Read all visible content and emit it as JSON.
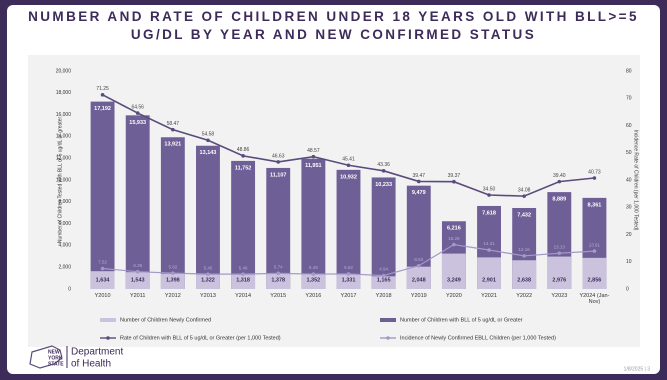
{
  "chart_data": {
    "type": "combo",
    "title": "NUMBER AND RATE OF CHILDREN UNDER 18 YEARS OLD WITH BLL>=5 UG/DL BY YEAR AND NEW CONFIRMED STATUS",
    "y_label": "Number of Children Tested with BLL of 5 ug/dL or greater",
    "y2_label": "Incidence Rate of Children (per 1,000 Tested)",
    "categories": [
      "Y2010",
      "Y2011",
      "Y2012",
      "Y2013",
      "Y2014",
      "Y2015",
      "Y2016",
      "Y2017",
      "Y2018",
      "Y2019",
      "Y2020",
      "Y2021",
      "Y2022",
      "Y2023",
      "Y2024 (Jan-Nov)"
    ],
    "ylim": [
      0,
      20000
    ],
    "yticks": [
      0,
      {
        "value": 2000,
        "label": "2,000"
      },
      {
        "value": 4000,
        "label": "4,000"
      },
      {
        "value": 6000,
        "label": "6,000"
      },
      {
        "value": 8000,
        "label": "8,000"
      },
      {
        "value": 10000,
        "label": "10,000"
      },
      {
        "value": 12000,
        "label": "12,000"
      },
      {
        "value": 14000,
        "label": "14,000"
      },
      {
        "value": 16000,
        "label": "16,000"
      },
      {
        "value": 18000,
        "label": "18,000"
      },
      {
        "value": 20000,
        "label": "20,000"
      }
    ],
    "y2lim": [
      0,
      80
    ],
    "y2ticks": [
      0,
      10,
      20,
      30,
      40,
      50,
      60,
      70,
      80
    ],
    "series": [
      {
        "name": "Number of Children with BLL of 5 ug/dL or Greater",
        "type": "bar",
        "color": "#6e5f96",
        "values": [
          17192,
          15933,
          13921,
          13143,
          11752,
          11107,
          11951,
          10932,
          10233,
          9479,
          6216,
          7618,
          7432,
          8889,
          8361
        ],
        "value_labels": [
          "17,192",
          "15,933",
          "13,921",
          "13,143",
          "11,752",
          "11,107",
          "11,951",
          "10,932",
          "10,233",
          "9,479",
          "6,216",
          "7,618",
          "7,432",
          "8,889",
          "8,361"
        ]
      },
      {
        "name": "Number of Children Newly Confirmed",
        "type": "bar",
        "color": "#cbc3de",
        "values": [
          1634,
          1543,
          1398,
          1322,
          1318,
          1378,
          1352,
          1331,
          1165,
          2048,
          3249,
          2901,
          2638,
          2976,
          2856
        ],
        "value_labels": [
          "1,634",
          "1,543",
          "1,398",
          "1,322",
          "1,318",
          "1,378",
          "1,352",
          "1,331",
          "1,165",
          "2,048",
          "3,249",
          "2,901",
          "2,638",
          "2,976",
          "2,856"
        ]
      },
      {
        "name": "Rate of Children with BLL of 5 ug/dL or Greater (per 1,000 Tested)",
        "type": "line",
        "axis": "y2",
        "color": "#5b4b7c",
        "values": [
          71.25,
          64.56,
          58.47,
          54.58,
          48.86,
          46.63,
          48.57,
          45.41,
          43.36,
          39.47,
          39.37,
          34.5,
          34.08,
          39.4,
          40.73
        ],
        "value_labels": [
          "71.25",
          "64.56",
          "58.47",
          "54.58",
          "48.86",
          "46.63",
          "48.57",
          "45.41",
          "43.36",
          "39.47",
          "39.37",
          "34.50",
          "34.08",
          "39.40",
          "40.73"
        ]
      },
      {
        "name": "Incidence of Newly Confirmed EBLL Children (per 1,000 Tested)",
        "type": "line",
        "axis": "y2",
        "color": "#a597c6",
        "values": [
          7.52,
          6.35,
          5.82,
          5.45,
          5.46,
          5.74,
          5.49,
          5.52,
          4.94,
          8.53,
          16.29,
          14.31,
          12.16,
          13.13,
          13.91
        ],
        "value_labels": [
          "7.52",
          "6.35",
          "5.82",
          "5.45",
          "5.46",
          "5.74",
          "5.49",
          "5.52",
          "4.94",
          "8.53",
          "16.29",
          "14.31",
          "12.16",
          "13.13",
          "13.91"
        ]
      }
    ]
  },
  "logo": {
    "line1": "NEW",
    "line2": "YORK",
    "line3": "STATE",
    "department": "Department",
    "health": "of Health"
  },
  "footer": "1/8/2025 | 3"
}
